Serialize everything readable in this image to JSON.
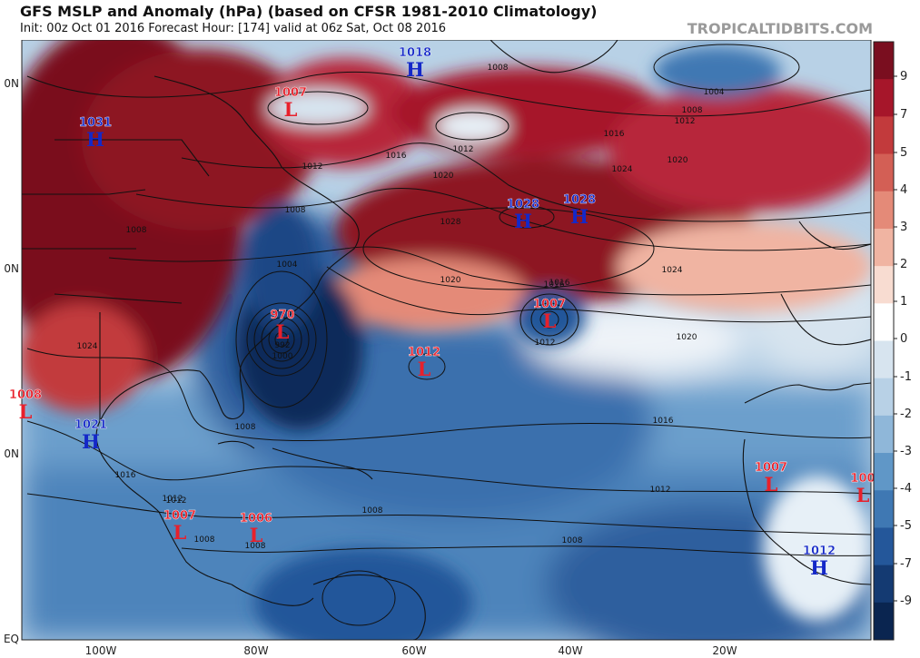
{
  "header": {
    "title": "GFS MSLP and Anomaly (hPa) (based on CFSR 1981-2010 Climatology)",
    "subtitle": "Init: 00z Oct 01 2016   Forecast Hour: [174]   valid at 06z Sat, Oct 08 2016",
    "brand": "TROPICALTIDBITS.COM"
  },
  "axes": {
    "lat_labels": [
      "0N",
      "0N",
      "0N",
      "EQ"
    ],
    "lon_labels": [
      "100W",
      "80W",
      "60W",
      "40W",
      "20W"
    ]
  },
  "colorbar": {
    "ticks": [
      "9",
      "7",
      "5",
      "4",
      "3",
      "2",
      "1",
      "0",
      "-1",
      "-2",
      "-3",
      "-4",
      "-5",
      "-7",
      "-9"
    ],
    "colors": [
      "#7a0e1f",
      "#a6162a",
      "#c23a3c",
      "#d35f55",
      "#e48a78",
      "#f0b4a2",
      "#f8dcd1",
      "#ffffff",
      "#d7e4ef",
      "#b8d1e6",
      "#8fb7d9",
      "#6097c7",
      "#3f78b3",
      "#24579a",
      "#143a72",
      "#0a2550"
    ]
  },
  "pressure_systems": [
    {
      "type": "H",
      "value": "1018",
      "color": "#1428c8"
    },
    {
      "type": "L",
      "value": "1007",
      "color": "#e8202b"
    },
    {
      "type": "H",
      "value": "1031",
      "color": "#1428c8"
    },
    {
      "type": "H",
      "value": "1028",
      "color": "#1428c8"
    },
    {
      "type": "H",
      "value": "1028",
      "color": "#1428c8"
    },
    {
      "type": "L",
      "value": "970",
      "color": "#e8202b"
    },
    {
      "type": "L",
      "value": "1007",
      "color": "#e8202b"
    },
    {
      "type": "L",
      "value": "1012",
      "color": "#e8202b"
    },
    {
      "type": "L",
      "value": "1008",
      "color": "#e8202b"
    },
    {
      "type": "H",
      "value": "1021",
      "color": "#1428c8"
    },
    {
      "type": "L",
      "value": "1007",
      "color": "#e8202b"
    },
    {
      "type": "L",
      "value": "1007",
      "color": "#e8202b"
    },
    {
      "type": "L",
      "value": "1006",
      "color": "#e8202b"
    },
    {
      "type": "L",
      "value": "1007",
      "color": "#e8202b"
    },
    {
      "type": "L",
      "value": "100",
      "color": "#e8202b"
    },
    {
      "type": "H",
      "value": "1012",
      "color": "#1428c8"
    }
  ],
  "isobar_labels": [
    "1008",
    "1004",
    "1008",
    "1012",
    "1016",
    "1020",
    "1024",
    "1012",
    "1016",
    "1020",
    "1012",
    "1008",
    "1004",
    "1028",
    "1024",
    "1020",
    "1016",
    "1024",
    "1016",
    "1012",
    "1020",
    "1016",
    "1012",
    "1008",
    "1012",
    "1008",
    "1008",
    "1008",
    "992",
    "1000",
    "1016",
    "1012",
    "1008",
    "1008"
  ]
}
